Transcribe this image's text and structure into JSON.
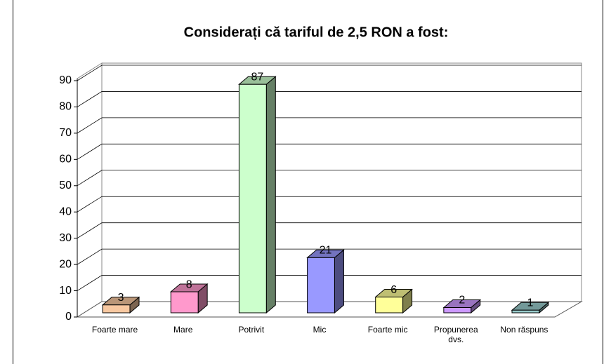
{
  "chart_data": {
    "type": "bar3d",
    "title": "Considerați că tariful de 2,5 RON a fost:",
    "categories": [
      "Foarte mare",
      "Mare",
      "Potrivit",
      "Mic",
      "Foarte mic",
      "Propunerea dvs.",
      "Non răspuns"
    ],
    "values": [
      3,
      8,
      87,
      21,
      6,
      2,
      1
    ],
    "colors": [
      "#f8c8a0",
      "#ff99cc",
      "#ccffcc",
      "#9999ff",
      "#ffff99",
      "#cc99ff",
      "#99cccc"
    ],
    "ylim": [
      0,
      90
    ],
    "yticks": [
      0,
      10,
      20,
      30,
      40,
      50,
      60,
      70,
      80,
      90
    ],
    "grid": true
  }
}
